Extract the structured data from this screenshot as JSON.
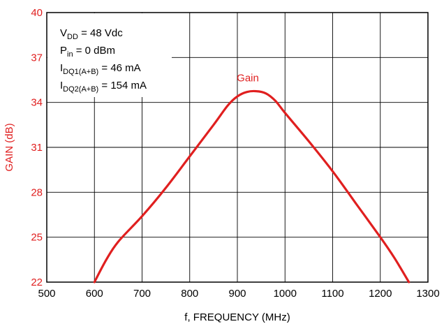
{
  "chart_data": {
    "type": "line",
    "xlabel": "f, FREQUENCY (MHz)",
    "ylabel": "GAIN (dB)",
    "xlim": [
      500,
      1300
    ],
    "ylim": [
      22,
      40
    ],
    "xticks": [
      500,
      600,
      700,
      800,
      900,
      1000,
      1100,
      1200,
      1300
    ],
    "yticks": [
      22,
      25,
      28,
      31,
      34,
      37,
      40
    ],
    "grid": true,
    "series": [
      {
        "name": "Gain",
        "color": "#e01f1f",
        "x": [
          600,
          625,
          650,
          700,
          750,
          800,
          850,
          880,
          900,
          920,
          940,
          960,
          980,
          1000,
          1050,
          1100,
          1150,
          1200,
          1230,
          1260
        ],
        "y": [
          22.0,
          23.5,
          24.7,
          26.4,
          28.3,
          30.4,
          32.5,
          33.8,
          34.4,
          34.7,
          34.75,
          34.6,
          34.1,
          33.3,
          31.4,
          29.4,
          27.2,
          25.0,
          23.6,
          22.0
        ]
      }
    ],
    "annotations": [
      {
        "base": "V",
        "sub": "DD",
        "rest": " = 48 Vdc"
      },
      {
        "base": "P",
        "sub": "in",
        "rest": " = 0 dBm"
      },
      {
        "base": "I",
        "sub": "DQ1(A+B)",
        "rest": " = 46 mA"
      },
      {
        "base": "I",
        "sub": "DQ2(A+B)",
        "rest": " = 154 mA"
      }
    ]
  }
}
